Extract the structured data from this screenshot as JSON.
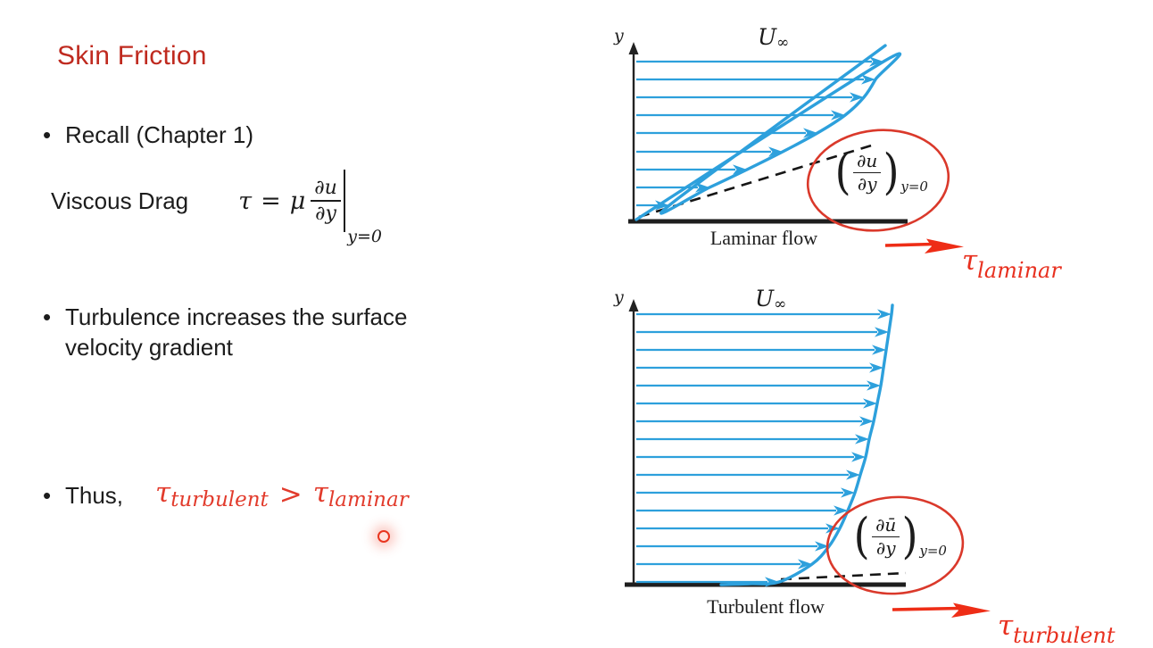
{
  "slide": {
    "title": "Skin Friction",
    "bullet_char": "•",
    "recall": "Recall (Chapter 1)",
    "viscous_label": "Viscous Drag",
    "viscous_formula": {
      "tau": "τ",
      "eq": "=",
      "mu": "μ",
      "num": "∂u",
      "den": "∂y",
      "eval_sub": "y=0"
    },
    "turbulence_line1": "Turbulence increases the surface",
    "turbulence_line2": "velocity gradient",
    "thus": "Thus,",
    "inequality": {
      "tau1": "τ",
      "sub1": "turbulent",
      "gt": ">",
      "tau2": "τ",
      "sub2": "laminar"
    }
  },
  "figures": {
    "laminar": {
      "axis": "y",
      "U": "U",
      "inf": "∞",
      "paren_l": "(",
      "num": "∂u",
      "den": "∂y",
      "paren_r": ")",
      "sub": "y=0",
      "caption": "Laminar flow",
      "tau": "τ",
      "tau_sub": "laminar"
    },
    "turbulent": {
      "axis": "y",
      "U": "U",
      "inf": "∞",
      "paren_l": "(",
      "num": "∂ū",
      "den": "∂y",
      "paren_r": ")",
      "sub": "y=0",
      "caption": "Turbulent flow",
      "tau": "τ",
      "tau_sub": "turbulent"
    }
  },
  "colors": {
    "title_red": "#bf2a1f",
    "math_red": "#e23b2c",
    "arrow_red": "#ee2d16",
    "ellipse_red": "#da392b",
    "flow_blue": "#2da0dc",
    "text_black": "#1c1c1c"
  }
}
